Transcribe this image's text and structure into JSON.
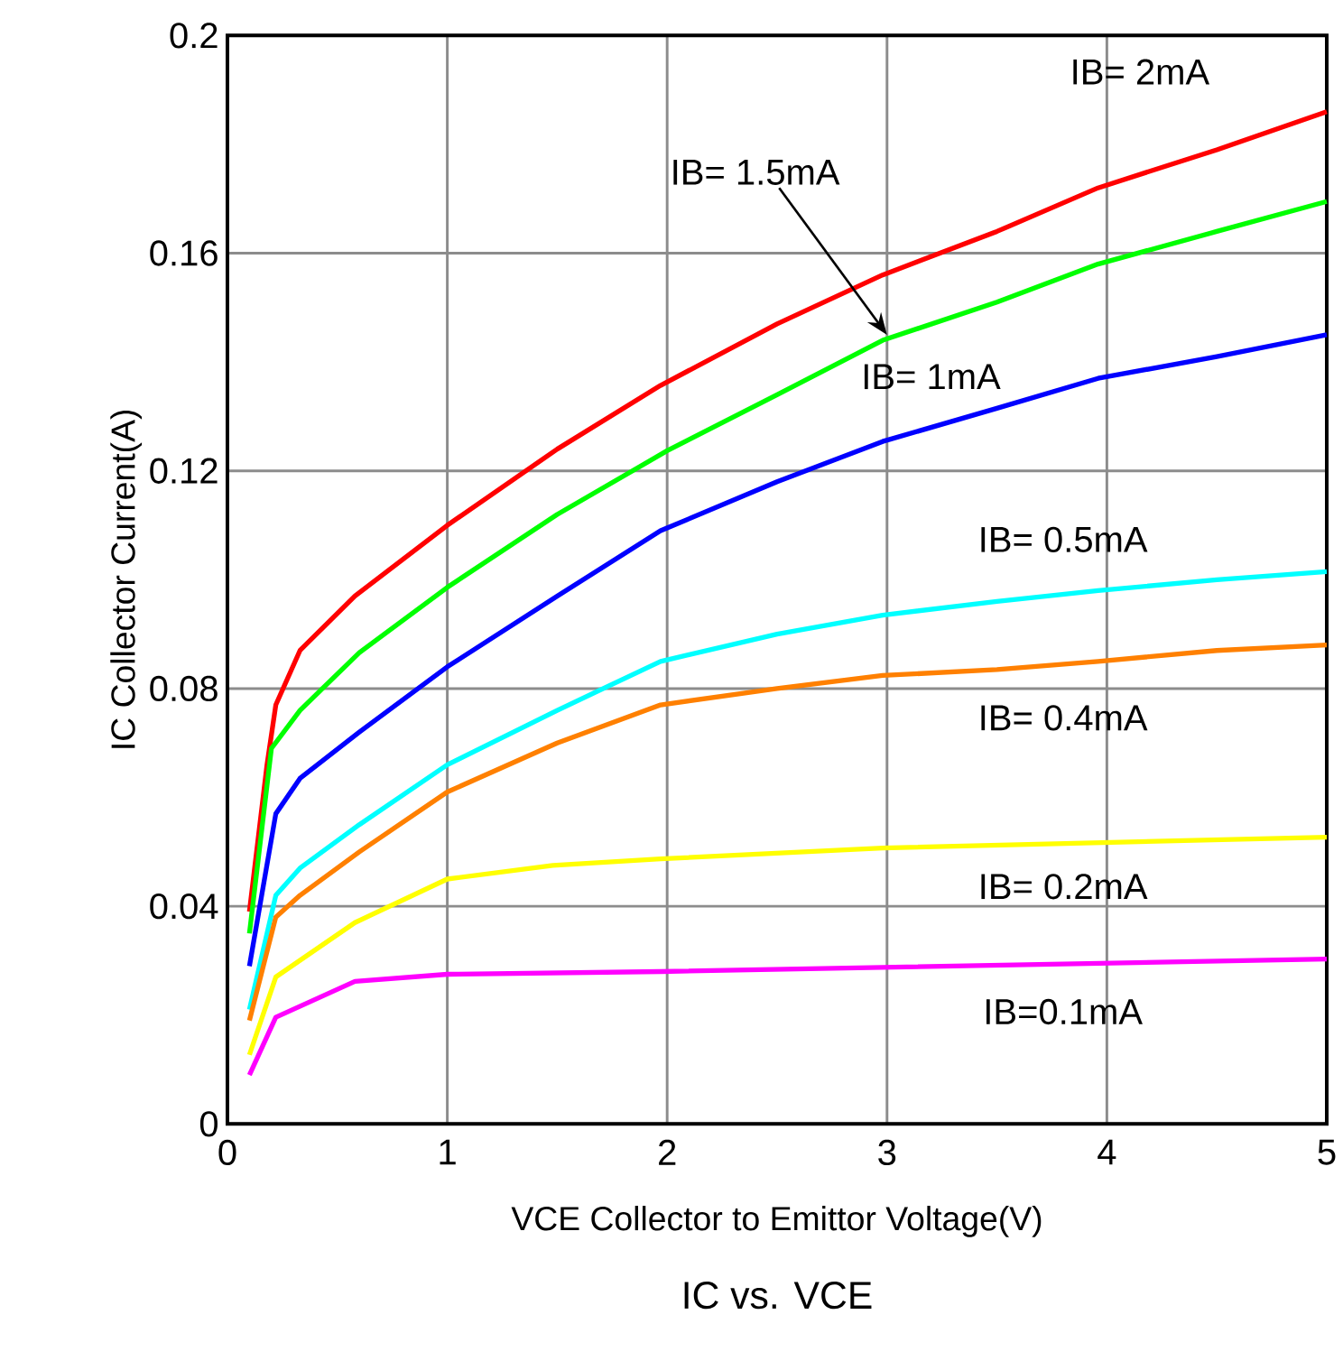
{
  "chart_data": {
    "type": "line",
    "title": "IC vs. VCE",
    "xlabel": "VCE Collector to Emittor Voltage(V)",
    "ylabel": "IC Collector Current(A)",
    "xlim": [
      0,
      5
    ],
    "ylim": [
      0,
      0.2
    ],
    "xticks": [
      0,
      1,
      2,
      3,
      4,
      5
    ],
    "yticks": [
      0,
      0.04,
      0.08,
      0.12,
      0.16,
      0.2
    ],
    "grid": true,
    "series": [
      {
        "name": "IB= 2mA",
        "color": "#ff0000",
        "x": [
          0.1,
          0.18,
          0.22,
          0.33,
          0.58,
          1.0,
          1.5,
          1.97,
          2.5,
          2.98,
          3.5,
          3.96,
          4.5,
          5.0
        ],
        "values": [
          0.039,
          0.066,
          0.077,
          0.087,
          0.097,
          0.11,
          0.124,
          0.1357,
          0.147,
          0.156,
          0.164,
          0.172,
          0.179,
          0.186
        ]
      },
      {
        "name": "IB= 1.5mA",
        "color": "#00ff00",
        "x": [
          0.1,
          0.2,
          0.33,
          0.6,
          1.0,
          1.5,
          2.0,
          2.5,
          2.98,
          3.5,
          3.96,
          4.5,
          5.0
        ],
        "values": [
          0.035,
          0.069,
          0.076,
          0.0866,
          0.0986,
          0.112,
          0.1237,
          0.134,
          0.144,
          0.151,
          0.158,
          0.164,
          0.1695
        ]
      },
      {
        "name": "IB= 1mA",
        "color": "#0000ff",
        "x": [
          0.1,
          0.22,
          0.33,
          0.6,
          1.0,
          1.5,
          1.97,
          2.5,
          2.98,
          3.5,
          3.96,
          4.5,
          5.0
        ],
        "values": [
          0.029,
          0.057,
          0.0635,
          0.072,
          0.084,
          0.097,
          0.109,
          0.118,
          0.1254,
          0.1315,
          0.137,
          0.141,
          0.145
        ]
      },
      {
        "name": "IB= 0.5mA",
        "color": "#00ffff",
        "x": [
          0.1,
          0.22,
          0.33,
          0.6,
          1.0,
          1.5,
          1.97,
          2.5,
          2.98,
          3.5,
          3.96,
          4.5,
          5.0
        ],
        "values": [
          0.021,
          0.042,
          0.047,
          0.055,
          0.066,
          0.076,
          0.085,
          0.09,
          0.0935,
          0.096,
          0.098,
          0.1,
          0.1015
        ]
      },
      {
        "name": "IB= 0.4mA",
        "color": "#ff8000",
        "x": [
          0.1,
          0.22,
          0.33,
          0.6,
          1.0,
          1.5,
          1.97,
          2.5,
          2.98,
          3.5,
          3.96,
          4.5,
          5.0
        ],
        "values": [
          0.019,
          0.038,
          0.042,
          0.05,
          0.061,
          0.07,
          0.077,
          0.08,
          0.0824,
          0.0835,
          0.085,
          0.087,
          0.088
        ]
      },
      {
        "name": "IB= 0.2mA",
        "color": "#ffff00",
        "x": [
          0.1,
          0.22,
          0.58,
          1.0,
          1.48,
          1.97,
          2.98,
          5.0
        ],
        "values": [
          0.0127,
          0.027,
          0.037,
          0.045,
          0.0475,
          0.0487,
          0.0507,
          0.0527
        ]
      },
      {
        "name": "IB=0.1mA",
        "color": "#ff00ff",
        "x": [
          0.1,
          0.22,
          0.58,
          1.0,
          1.97,
          5.0
        ],
        "values": [
          0.009,
          0.0196,
          0.0262,
          0.0275,
          0.028,
          0.0303
        ]
      }
    ]
  }
}
